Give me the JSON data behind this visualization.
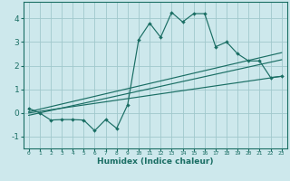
{
  "xlabel": "Humidex (Indice chaleur)",
  "bg_color": "#cde8ec",
  "grid_color": "#a0c8cc",
  "line_color": "#1a6e64",
  "xlim": [
    -0.5,
    23.5
  ],
  "ylim": [
    -1.5,
    4.7
  ],
  "xticks": [
    0,
    1,
    2,
    3,
    4,
    5,
    6,
    7,
    8,
    9,
    10,
    11,
    12,
    13,
    14,
    15,
    16,
    17,
    18,
    19,
    20,
    21,
    22,
    23
  ],
  "yticks": [
    -1,
    0,
    1,
    2,
    3,
    4
  ],
  "jagged_x": [
    0,
    1,
    2,
    3,
    4,
    5,
    6,
    7,
    8,
    9,
    10,
    11,
    12,
    13,
    14,
    15,
    16,
    17,
    18,
    19,
    20,
    21,
    22,
    23
  ],
  "jagged_y": [
    0.2,
    0.0,
    -0.3,
    -0.28,
    -0.28,
    -0.3,
    -0.75,
    -0.28,
    -0.65,
    0.35,
    3.1,
    3.8,
    3.2,
    4.25,
    3.85,
    4.2,
    4.2,
    2.8,
    3.0,
    2.5,
    2.2,
    2.2,
    1.5,
    1.55
  ],
  "line1_x": [
    0,
    23
  ],
  "line1_y": [
    -0.1,
    2.25
  ],
  "line2_x": [
    0,
    23
  ],
  "line2_y": [
    0.0,
    1.55
  ],
  "line3_x": [
    0,
    23
  ],
  "line3_y": [
    0.05,
    2.55
  ]
}
